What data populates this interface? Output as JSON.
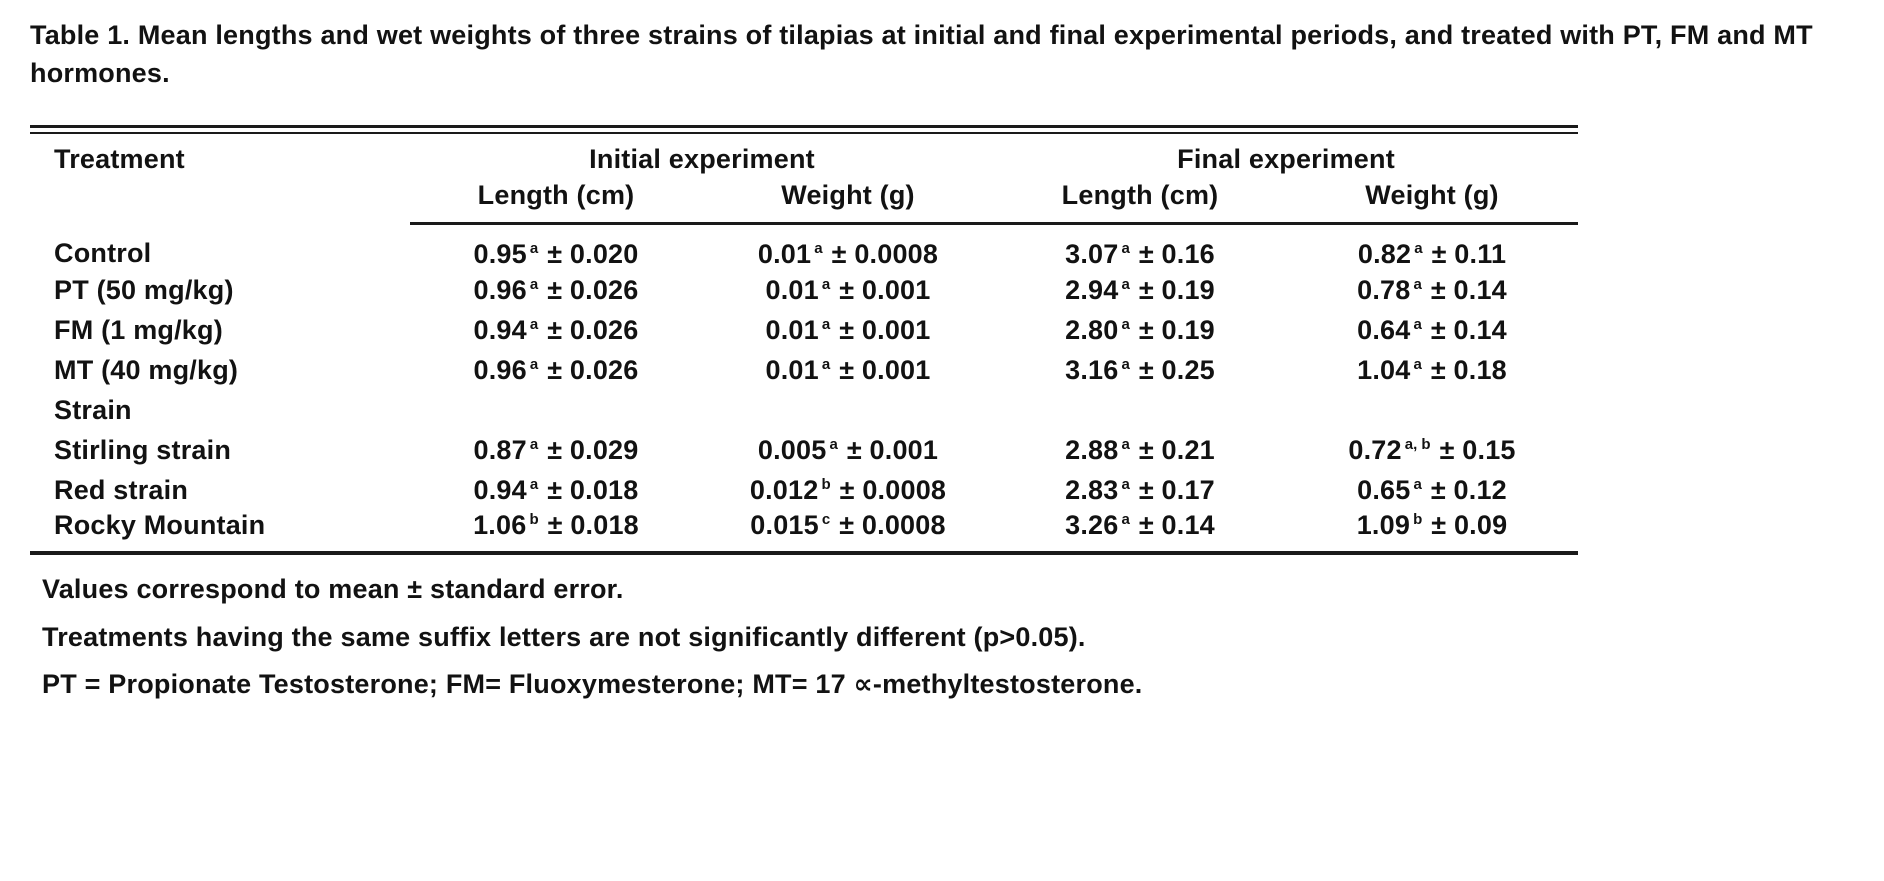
{
  "caption": "Table 1. Mean lengths and wet weights of three strains of tilapias at initial and final experimental periods, and treated with PT, FM and MT hormones.",
  "table": {
    "header": {
      "treatment": "Treatment",
      "groups": [
        "Initial experiment",
        "Final experiment"
      ],
      "columns": [
        "Length (cm)",
        "Weight (g)",
        "Length (cm)",
        "Weight (g)"
      ]
    },
    "rows": [
      {
        "label": "Control",
        "cells": [
          {
            "mean": "0.95",
            "sup": "a",
            "se": "± 0.020"
          },
          {
            "mean": "0.01",
            "sup": "a",
            "se": "± 0.0008"
          },
          {
            "mean": "3.07",
            "sup": "a",
            "se": "± 0.16"
          },
          {
            "mean": "0.82",
            "sup": "a",
            "se": "± 0.11"
          }
        ]
      },
      {
        "label": "PT (50 mg/kg)",
        "cells": [
          {
            "mean": "0.96",
            "sup": "a",
            "se": "± 0.026"
          },
          {
            "mean": "0.01",
            "sup": "a",
            "se": "± 0.001"
          },
          {
            "mean": "2.94",
            "sup": "a",
            "se": "± 0.19"
          },
          {
            "mean": "0.78",
            "sup": "a",
            "se": "± 0.14"
          }
        ]
      },
      {
        "label": "FM (1 mg/kg)",
        "cells": [
          {
            "mean": "0.94",
            "sup": "a",
            "se": "± 0.026"
          },
          {
            "mean": "0.01",
            "sup": "a",
            "se": "± 0.001"
          },
          {
            "mean": "2.80",
            "sup": "a",
            "se": "± 0.19"
          },
          {
            "mean": "0.64",
            "sup": "a",
            "se": "± 0.14"
          }
        ]
      },
      {
        "label": "MT (40 mg/kg)",
        "cells": [
          {
            "mean": "0.96",
            "sup": "a",
            "se": "± 0.026"
          },
          {
            "mean": "0.01",
            "sup": "a",
            "se": "± 0.001"
          },
          {
            "mean": "3.16",
            "sup": "a",
            "se": "± 0.25"
          },
          {
            "mean": "1.04",
            "sup": "a",
            "se": "± 0.18"
          }
        ]
      },
      {
        "label": "Strain",
        "subheading": true,
        "cells": []
      },
      {
        "label": "Stirling strain",
        "cells": [
          {
            "mean": "0.87",
            "sup": "a",
            "se": "± 0.029"
          },
          {
            "mean": "0.005",
            "sup": "a",
            "se": "± 0.001"
          },
          {
            "mean": "2.88",
            "sup": "a",
            "se": "± 0.21"
          },
          {
            "mean": "0.72",
            "sup": "a, b",
            "se": "± 0.15"
          }
        ]
      },
      {
        "label": "Red strain",
        "cells": [
          {
            "mean": "0.94",
            "sup": "a",
            "se": "± 0.018"
          },
          {
            "mean": "0.012",
            "sup": "b",
            "se": "± 0.0008"
          },
          {
            "mean": "2.83",
            "sup": "a",
            "se": "± 0.17"
          },
          {
            "mean": "0.65",
            "sup": "a",
            "se": "± 0.12"
          }
        ]
      },
      {
        "label": "Rocky Mountain",
        "cells": [
          {
            "mean": "1.06",
            "sup": "b",
            "se": "± 0.018"
          },
          {
            "mean": "0.015",
            "sup": "c",
            "se": "± 0.0008"
          },
          {
            "mean": "3.26",
            "sup": "a",
            "se": "± 0.14"
          },
          {
            "mean": "1.09",
            "sup": "b",
            "se": "± 0.09"
          }
        ]
      }
    ]
  },
  "footnotes": [
    "Values correspond to mean ± standard error.",
    "Treatments having the same suffix letters are not significantly different (p>0.05).",
    "PT = Propionate Testosterone; FM= Fluoxymesterone; MT= 17 ∝-methyltestosterone."
  ]
}
